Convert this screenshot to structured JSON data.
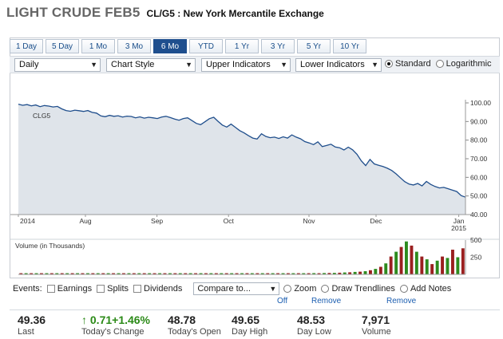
{
  "header": {
    "title": "LIGHT CRUDE FEB5",
    "subtitle": "CL/G5 : New York Mercantile Exchange"
  },
  "range_tabs": [
    {
      "label": "1 Day",
      "active": false
    },
    {
      "label": "5 Day",
      "active": false
    },
    {
      "label": "1 Mo",
      "active": false
    },
    {
      "label": "3 Mo",
      "active": false
    },
    {
      "label": "6 Mo",
      "active": true
    },
    {
      "label": "YTD",
      "active": false
    },
    {
      "label": "1 Yr",
      "active": false
    },
    {
      "label": "3 Yr",
      "active": false
    },
    {
      "label": "5 Yr",
      "active": false
    },
    {
      "label": "10 Yr",
      "active": false
    }
  ],
  "controls": {
    "interval": "Daily",
    "chart_style": "Chart Style",
    "upper_indicators": "Upper Indicators",
    "lower_indicators": "Lower Indicators",
    "scale_standard": "Standard",
    "scale_log": "Logarithmic",
    "scale_selected": "Standard"
  },
  "chart_data": [
    {
      "type": "line",
      "series": [
        {
          "name": "CLG5"
        }
      ],
      "x_labels": [
        "2014",
        "Aug",
        "Sep",
        "Oct",
        "Nov",
        "Dec",
        "Jan 2015"
      ],
      "y_ticks": [
        "100.00",
        "90.00",
        "80.00",
        "70.00",
        "60.00",
        "50.00",
        "40.00"
      ],
      "ylim": [
        40,
        100
      ],
      "values": [
        99.3,
        98.7,
        99.1,
        98.4,
        98.9,
        98.0,
        98.6,
        98.3,
        97.8,
        98.1,
        96.8,
        95.9,
        95.5,
        96.1,
        95.8,
        95.4,
        95.9,
        94.9,
        94.5,
        93.0,
        92.6,
        93.3,
        92.8,
        93.1,
        92.4,
        92.9,
        92.7,
        92.0,
        92.5,
        91.8,
        92.3,
        92.0,
        91.6,
        92.4,
        92.8,
        92.1,
        91.3,
        90.7,
        91.6,
        92.0,
        90.5,
        89.0,
        88.3,
        89.9,
        91.5,
        92.3,
        90.1,
        88.1,
        87.0,
        88.6,
        86.9,
        85.1,
        83.9,
        82.4,
        81.1,
        80.6,
        83.4,
        82.0,
        81.3,
        81.6,
        80.9,
        81.8,
        81.1,
        82.8,
        81.6,
        80.7,
        79.2,
        78.5,
        77.6,
        79.1,
        76.5,
        77.1,
        77.8,
        76.3,
        75.9,
        74.7,
        76.2,
        74.8,
        72.4,
        68.9,
        66.3,
        69.6,
        67.2,
        66.5,
        65.8,
        64.9,
        63.7,
        61.9,
        59.8,
        57.7,
        56.4,
        55.9,
        56.7,
        55.4,
        57.8,
        56.2,
        55.1,
        54.3,
        54.6,
        53.9,
        53.1,
        52.4,
        50.2,
        49.36
      ],
      "ylabel": "",
      "xlabel": ""
    },
    {
      "type": "bar",
      "title": "Volume (in Thousands)",
      "y_ticks": [
        "500",
        "250"
      ],
      "ylim": [
        0,
        500
      ],
      "values": [
        12,
        10,
        14,
        11,
        13,
        12,
        15,
        10,
        12,
        14,
        11,
        13,
        12,
        14,
        13,
        11,
        15,
        12,
        13,
        14,
        12,
        11,
        13,
        15,
        12,
        14,
        13,
        12,
        14,
        11,
        13,
        15,
        12,
        14,
        13,
        12,
        14,
        13,
        15,
        12,
        14,
        13,
        16,
        14,
        12,
        15,
        14,
        13,
        16,
        15,
        17,
        14,
        16,
        15,
        18,
        16,
        17,
        19,
        18,
        20,
        21,
        22,
        24,
        28,
        30,
        36,
        40,
        46,
        60,
        80,
        110,
        160,
        260,
        330,
        400,
        480,
        420,
        330,
        260,
        220,
        150,
        200,
        260,
        240,
        360,
        250,
        380
      ],
      "colors": {
        "up": "#2e8b1e",
        "down": "#9a1f1f"
      }
    }
  ],
  "events": {
    "label": "Events:",
    "earnings": "Earnings",
    "splits": "Splits",
    "dividends": "Dividends",
    "compare": "Compare to...",
    "zoom": "Zoom",
    "zoom_state": "Off",
    "trendlines": "Draw Trendlines",
    "trendlines_action": "Remove",
    "notes": "Add Notes",
    "notes_action": "Remove"
  },
  "stats": [
    {
      "value": "49.36",
      "label": "Last"
    },
    {
      "value": "↑ 0.71+1.46%",
      "label": "Today's Change"
    },
    {
      "value": "48.78",
      "label": "Today's Open"
    },
    {
      "value": "49.65",
      "label": "Day High"
    },
    {
      "value": "48.53",
      "label": "Day Low"
    },
    {
      "value": "7,971",
      "label": "Volume"
    }
  ],
  "colors": {
    "line": "#1f4e8c",
    "fill": "#dfe4ea",
    "tab_active": "#1f4f8e",
    "up": "#2b8a17"
  }
}
